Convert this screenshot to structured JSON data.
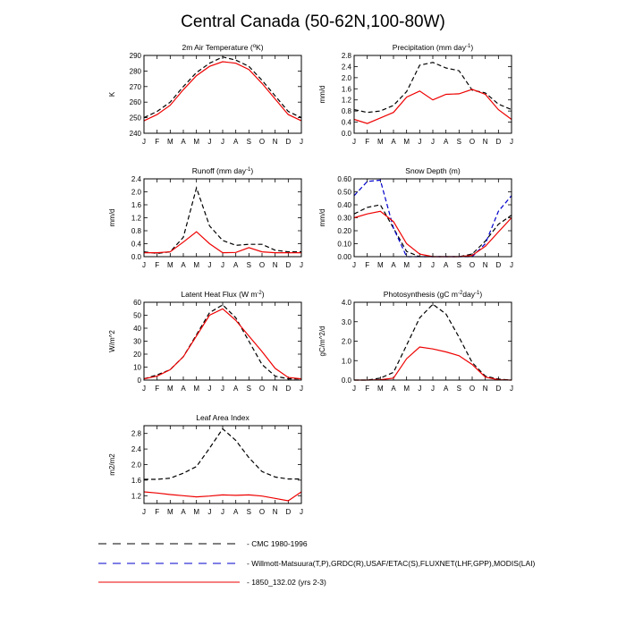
{
  "figure": {
    "title": "Central Canada (50-62N,100-80W)"
  },
  "legend": [
    {
      "label": "CMC 1980-1996",
      "color": "#000000",
      "dash": "dashed"
    },
    {
      "label": "Willmott-Matsuura(T,P),GRDC(R),USAF/ETAC(S),FLUXNET(LHF,GPP),MODIS(LAI)",
      "color": "#0000cc",
      "dash": "dashed"
    },
    {
      "label": "1850_132.02 (yrs 2-3)",
      "color": "#ee0000",
      "dash": "solid"
    }
  ],
  "chart_data": [
    {
      "type": "line",
      "title_parts": [
        "2m Air Temperature (",
        "o",
        "K)"
      ],
      "ylabel": "K",
      "ylim": [
        240,
        290
      ],
      "yticks": [
        240,
        250,
        260,
        270,
        280,
        290
      ],
      "x": [
        "J",
        "F",
        "M",
        "A",
        "M",
        "J",
        "J",
        "A",
        "S",
        "O",
        "N",
        "D",
        "J"
      ],
      "series": [
        {
          "values": [
            250,
            254,
            260,
            270,
            279,
            285,
            289,
            287,
            283,
            274,
            264,
            254,
            250
          ],
          "color": "#000000",
          "dash": "dashed"
        },
        {
          "values": [
            248,
            252,
            258,
            268,
            277,
            283,
            286,
            285,
            281,
            272,
            262,
            252,
            248
          ],
          "color": "#ee0000",
          "dash": "solid"
        }
      ]
    },
    {
      "type": "line",
      "title_parts": [
        "Precipitation (mm day",
        "-1",
        ")"
      ],
      "ylabel": "mm/d",
      "ylim": [
        0,
        2.8
      ],
      "yticks": [
        "0.0",
        "0.4",
        "0.8",
        "1.2",
        "1.6",
        "2.0",
        "2.4",
        "2.8"
      ],
      "x": [
        "J",
        "F",
        "M",
        "A",
        "M",
        "J",
        "J",
        "A",
        "S",
        "O",
        "N",
        "D",
        "J"
      ],
      "series": [
        {
          "values": [
            0.85,
            0.75,
            0.8,
            1.0,
            1.5,
            2.45,
            2.55,
            2.35,
            2.25,
            1.55,
            1.45,
            1.05,
            0.85
          ],
          "color": "#000000",
          "dash": "dashed"
        },
        {
          "values": [
            0.5,
            0.35,
            0.55,
            0.75,
            1.3,
            1.52,
            1.2,
            1.4,
            1.42,
            1.58,
            1.4,
            0.85,
            0.5
          ],
          "color": "#ee0000",
          "dash": "solid"
        }
      ]
    },
    {
      "type": "line",
      "title_parts": [
        "Runoff (mm day",
        "-1",
        ")"
      ],
      "ylabel": "mm/d",
      "ylim": [
        0,
        2.4
      ],
      "yticks": [
        "0.0",
        "0.4",
        "0.8",
        "1.2",
        "1.6",
        "2.0",
        "2.4"
      ],
      "x": [
        "J",
        "F",
        "M",
        "A",
        "M",
        "J",
        "J",
        "A",
        "S",
        "O",
        "N",
        "D",
        "J"
      ],
      "series": [
        {
          "values": [
            0.15,
            0.1,
            0.15,
            0.6,
            2.12,
            0.95,
            0.5,
            0.35,
            0.38,
            0.38,
            0.2,
            0.15,
            0.15
          ],
          "color": "#000000",
          "dash": "dashed"
        },
        {
          "values": [
            0.12,
            0.12,
            0.15,
            0.45,
            0.77,
            0.4,
            0.12,
            0.13,
            0.28,
            0.15,
            0.12,
            0.12,
            0.12
          ],
          "color": "#ee0000",
          "dash": "solid"
        }
      ]
    },
    {
      "type": "line",
      "title_parts": [
        "Snow Depth (m)"
      ],
      "ylabel": "mm/d",
      "ylim": [
        0,
        0.6
      ],
      "yticks": [
        "0.00",
        "0.10",
        "0.20",
        "0.30",
        "0.40",
        "0.50",
        "0.60"
      ],
      "x": [
        "J",
        "F",
        "M",
        "A",
        "M",
        "J",
        "J",
        "A",
        "S",
        "O",
        "N",
        "D",
        "J"
      ],
      "series": [
        {
          "values": [
            0.33,
            0.38,
            0.4,
            0.22,
            0.04,
            0.0,
            0.0,
            0.0,
            0.0,
            0.02,
            0.12,
            0.25,
            0.32
          ],
          "color": "#000000",
          "dash": "dashed"
        },
        {
          "values": [
            0.47,
            0.58,
            0.59,
            0.22,
            0.0,
            0.0,
            0.0,
            0.0,
            0.0,
            0.0,
            0.1,
            0.35,
            0.47
          ],
          "color": "#0000cc",
          "dash": "dashed"
        },
        {
          "values": [
            0.3,
            0.33,
            0.35,
            0.27,
            0.1,
            0.02,
            0.0,
            0.0,
            0.0,
            0.01,
            0.08,
            0.19,
            0.3
          ],
          "color": "#ee0000",
          "dash": "solid"
        }
      ]
    },
    {
      "type": "line",
      "title_parts": [
        "Latent Heat Flux (W m",
        "-2",
        ")"
      ],
      "ylabel": "W/m^2",
      "ylim": [
        0,
        60
      ],
      "yticks": [
        0,
        10,
        20,
        30,
        40,
        50,
        60
      ],
      "x": [
        "J",
        "F",
        "M",
        "A",
        "M",
        "J",
        "J",
        "A",
        "S",
        "O",
        "N",
        "D",
        "J"
      ],
      "series": [
        {
          "values": [
            1,
            4,
            8,
            18,
            35,
            52,
            58,
            48,
            30,
            12,
            3,
            1,
            1
          ],
          "color": "#000000",
          "dash": "dashed"
        },
        {
          "values": [
            1,
            3,
            8,
            18,
            34,
            50,
            55,
            46,
            34,
            22,
            9,
            2,
            1
          ],
          "color": "#ee0000",
          "dash": "solid"
        }
      ]
    },
    {
      "type": "line",
      "title_parts": [
        "Photosynthesis (gC m",
        "-2",
        "day",
        "-1",
        ")"
      ],
      "ylabel": "gC/m^2/d",
      "ylim": [
        0,
        4
      ],
      "yticks": [
        "0.0",
        "1.0",
        "2.0",
        "3.0",
        "4.0"
      ],
      "x": [
        "J",
        "F",
        "M",
        "A",
        "M",
        "J",
        "J",
        "A",
        "S",
        "O",
        "N",
        "D",
        "J"
      ],
      "series": [
        {
          "values": [
            0.0,
            0.0,
            0.1,
            0.4,
            1.8,
            3.2,
            3.9,
            3.4,
            2.2,
            0.9,
            0.2,
            0.05,
            0.0
          ],
          "color": "#000000",
          "dash": "dashed"
        },
        {
          "values": [
            0.0,
            0.0,
            0.02,
            0.1,
            1.1,
            1.7,
            1.6,
            1.45,
            1.25,
            0.8,
            0.15,
            0.02,
            0.0
          ],
          "color": "#ee0000",
          "dash": "solid"
        }
      ]
    },
    {
      "type": "line",
      "title_parts": [
        "Leaf Area Index"
      ],
      "ylabel": "m2/m2",
      "ylim": [
        1.0,
        3.0
      ],
      "yticks": [
        "1.2",
        "1.6",
        "2.0",
        "2.4",
        "2.8"
      ],
      "x": [
        "J",
        "F",
        "M",
        "A",
        "M",
        "J",
        "J",
        "A",
        "S",
        "O",
        "N",
        "D",
        "J"
      ],
      "series": [
        {
          "values": [
            1.62,
            1.62,
            1.65,
            1.78,
            1.95,
            2.42,
            2.92,
            2.62,
            2.18,
            1.82,
            1.68,
            1.63,
            1.63
          ],
          "color": "#000000",
          "dash": "dashed"
        },
        {
          "values": [
            1.3,
            1.27,
            1.23,
            1.2,
            1.17,
            1.19,
            1.22,
            1.21,
            1.22,
            1.19,
            1.13,
            1.07,
            1.3
          ],
          "color": "#ee0000",
          "dash": "solid"
        }
      ]
    }
  ]
}
